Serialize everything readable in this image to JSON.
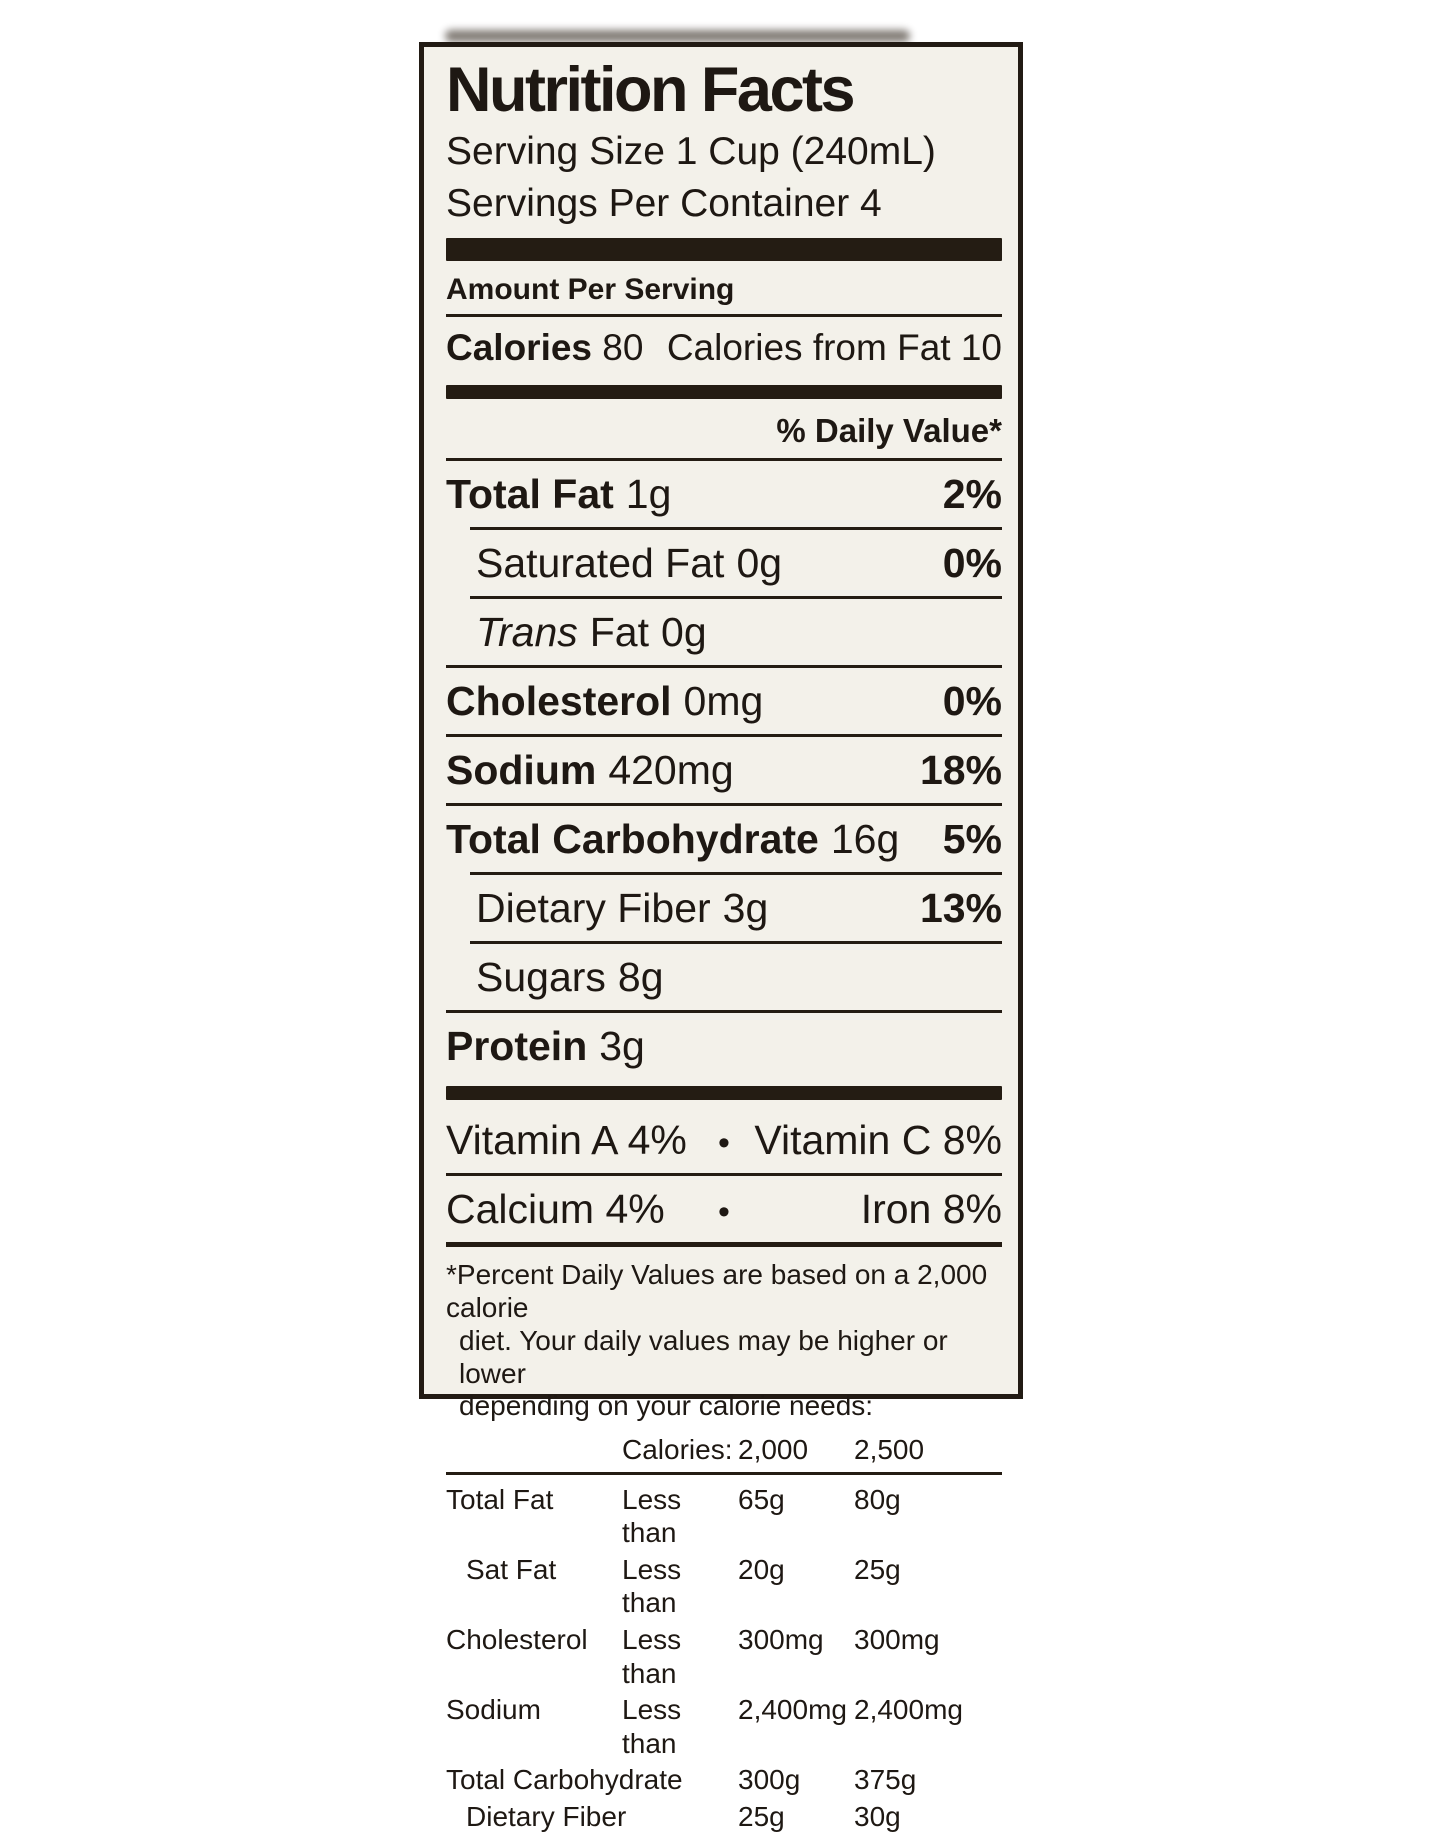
{
  "label": {
    "title": "Nutrition Facts",
    "serving_size": "Serving Size 1 Cup (240mL)",
    "servings_per_container": "Servings Per Container 4",
    "amount_per_serving": "Amount Per Serving",
    "calories_label": "Calories",
    "calories_value": "80",
    "calories_from_fat": "Calories from Fat 10",
    "daily_value_header": "% Daily Value*",
    "bullet": "•",
    "nutrients": [
      {
        "name": "Total Fat",
        "amount": "1g",
        "dv": "2%"
      },
      {
        "name": "Saturated Fat",
        "amount": "0g",
        "dv": "0%"
      },
      {
        "name_italic": "Trans",
        "name": "Fat",
        "amount": "0g",
        "dv": ""
      },
      {
        "name": "Cholesterol",
        "amount": "0mg",
        "dv": "0%"
      },
      {
        "name": "Sodium",
        "amount": "420mg",
        "dv": "18%"
      },
      {
        "name": "Total Carbohydrate",
        "amount": "16g",
        "dv": "5%"
      },
      {
        "name": "Dietary Fiber",
        "amount": "3g",
        "dv": "13%"
      },
      {
        "name": "Sugars",
        "amount": "8g",
        "dv": ""
      },
      {
        "name": "Protein",
        "amount": "3g",
        "dv": ""
      }
    ],
    "vitamins": [
      {
        "left": "Vitamin A 4%",
        "right": "Vitamin C 8%"
      },
      {
        "left": "Calcium 4%",
        "right": "Iron 8%"
      }
    ],
    "footnote_lines": [
      "*Percent Daily Values are based on a 2,000 calorie",
      "diet. Your daily values may be higher or lower",
      "depending on your calorie needs:"
    ],
    "footer_table": {
      "header": {
        "label": "Calories:",
        "col1": "2,000",
        "col2": "2,500"
      },
      "rows": [
        {
          "name": "Total Fat",
          "qual": "Less than",
          "v1": "65g",
          "v2": "80g"
        },
        {
          "name": "Sat Fat",
          "qual": "Less than",
          "v1": "20g",
          "v2": "25g"
        },
        {
          "name": "Cholesterol",
          "qual": "Less than",
          "v1": "300mg",
          "v2": "300mg"
        },
        {
          "name": "Sodium",
          "qual": "Less than",
          "v1": "2,400mg",
          "v2": "2,400mg"
        },
        {
          "name": "Total Carbohydrate",
          "qual": "",
          "v1": "300g",
          "v2": "375g"
        },
        {
          "name": "Dietary Fiber",
          "qual": "",
          "v1": "25g",
          "v2": "30g"
        }
      ]
    },
    "colors": {
      "page_bg": "#ffffff",
      "label_bg": "#f3f1ea",
      "ink": "#1e1813"
    }
  }
}
